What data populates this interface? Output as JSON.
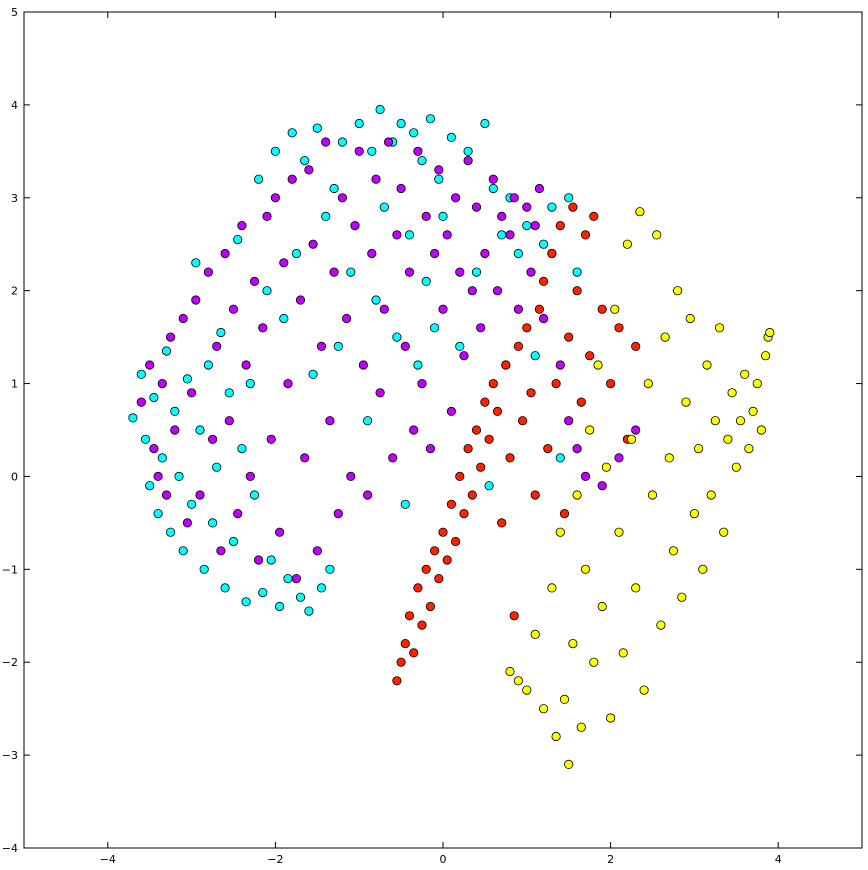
{
  "chart_data": {
    "type": "scatter",
    "title": "",
    "xlabel": "",
    "ylabel": "",
    "xlim": [
      -5,
      5
    ],
    "ylim": [
      -4,
      5
    ],
    "xticks": [
      -4,
      -2,
      0,
      2,
      4
    ],
    "yticks": [
      -4,
      -3,
      -2,
      -1,
      0,
      1,
      2,
      3,
      4,
      5
    ],
    "grid": false,
    "legend": "none",
    "series": [
      {
        "color": "#00ffff",
        "points": [
          [
            -3.7,
            0.63
          ],
          [
            -3.6,
            1.1
          ],
          [
            -3.55,
            0.4
          ],
          [
            -3.5,
            -0.1
          ],
          [
            -3.45,
            0.85
          ],
          [
            -3.4,
            -0.4
          ],
          [
            -3.35,
            0.2
          ],
          [
            -3.3,
            1.35
          ],
          [
            -3.25,
            -0.6
          ],
          [
            -3.2,
            0.7
          ],
          [
            -3.15,
            0.0
          ],
          [
            -3.1,
            -0.8
          ],
          [
            -3.05,
            1.05
          ],
          [
            -3.0,
            -0.3
          ],
          [
            -2.95,
            2.3
          ],
          [
            -2.9,
            0.5
          ],
          [
            -2.85,
            -1.0
          ],
          [
            -2.8,
            1.2
          ],
          [
            -2.75,
            -0.5
          ],
          [
            -2.7,
            0.1
          ],
          [
            -2.65,
            1.55
          ],
          [
            -2.6,
            -1.2
          ],
          [
            -2.55,
            0.9
          ],
          [
            -2.5,
            -0.7
          ],
          [
            -2.45,
            2.55
          ],
          [
            -2.4,
            0.3
          ],
          [
            -2.35,
            -1.35
          ],
          [
            -2.3,
            1.0
          ],
          [
            -2.25,
            -0.2
          ],
          [
            -2.2,
            3.2
          ],
          [
            -2.15,
            -1.25
          ],
          [
            -2.1,
            2.0
          ],
          [
            -2.05,
            -0.9
          ],
          [
            -2.0,
            3.5
          ],
          [
            -1.95,
            -1.4
          ],
          [
            -1.9,
            1.7
          ],
          [
            -1.85,
            -1.1
          ],
          [
            -1.8,
            3.7
          ],
          [
            -1.75,
            2.4
          ],
          [
            -1.7,
            -1.3
          ],
          [
            -1.65,
            3.4
          ],
          [
            -1.6,
            -1.45
          ],
          [
            -1.55,
            1.1
          ],
          [
            -1.5,
            3.75
          ],
          [
            -1.45,
            -1.2
          ],
          [
            -1.4,
            2.8
          ],
          [
            -1.35,
            -1.0
          ],
          [
            -1.3,
            3.1
          ],
          [
            -1.25,
            1.4
          ],
          [
            -1.2,
            3.6
          ],
          [
            -1.1,
            2.2
          ],
          [
            -1.0,
            3.8
          ],
          [
            -0.9,
            0.6
          ],
          [
            -0.85,
            3.5
          ],
          [
            -0.8,
            1.9
          ],
          [
            -0.75,
            3.95
          ],
          [
            -0.7,
            2.9
          ],
          [
            -0.6,
            3.6
          ],
          [
            -0.55,
            1.5
          ],
          [
            -0.5,
            3.8
          ],
          [
            -0.45,
            -0.3
          ],
          [
            -0.4,
            2.6
          ],
          [
            -0.35,
            3.7
          ],
          [
            -0.3,
            1.2
          ],
          [
            -0.25,
            3.4
          ],
          [
            -0.2,
            2.1
          ],
          [
            -0.15,
            3.85
          ],
          [
            -0.1,
            1.6
          ],
          [
            -0.05,
            3.2
          ],
          [
            0.0,
            2.8
          ],
          [
            0.1,
            3.65
          ],
          [
            0.2,
            1.4
          ],
          [
            0.3,
            3.5
          ],
          [
            0.4,
            2.2
          ],
          [
            0.5,
            3.8
          ],
          [
            0.55,
            -0.1
          ],
          [
            0.6,
            3.1
          ],
          [
            0.7,
            2.6
          ],
          [
            0.8,
            3.0
          ],
          [
            0.9,
            2.4
          ],
          [
            1.0,
            2.7
          ],
          [
            1.1,
            1.3
          ],
          [
            1.2,
            2.5
          ],
          [
            1.3,
            2.9
          ],
          [
            1.4,
            0.2
          ],
          [
            1.5,
            3.0
          ],
          [
            1.6,
            2.2
          ]
        ]
      },
      {
        "color": "#bf00ff",
        "points": [
          [
            -3.6,
            0.8
          ],
          [
            -3.5,
            1.2
          ],
          [
            -3.45,
            0.3
          ],
          [
            -3.4,
            0.0
          ],
          [
            -3.35,
            1.0
          ],
          [
            -3.3,
            -0.2
          ],
          [
            -3.25,
            1.5
          ],
          [
            -3.2,
            0.5
          ],
          [
            -3.1,
            1.7
          ],
          [
            -3.05,
            -0.5
          ],
          [
            -3.0,
            0.9
          ],
          [
            -2.95,
            1.9
          ],
          [
            -2.9,
            -0.2
          ],
          [
            -2.8,
            2.2
          ],
          [
            -2.75,
            0.4
          ],
          [
            -2.7,
            1.4
          ],
          [
            -2.65,
            -0.8
          ],
          [
            -2.6,
            2.4
          ],
          [
            -2.55,
            0.6
          ],
          [
            -2.5,
            1.8
          ],
          [
            -2.45,
            -0.4
          ],
          [
            -2.4,
            2.7
          ],
          [
            -2.35,
            1.2
          ],
          [
            -2.3,
            0.0
          ],
          [
            -2.25,
            2.1
          ],
          [
            -2.2,
            -0.9
          ],
          [
            -2.15,
            1.6
          ],
          [
            -2.1,
            2.8
          ],
          [
            -2.05,
            0.4
          ],
          [
            -2.0,
            3.0
          ],
          [
            -1.95,
            -0.6
          ],
          [
            -1.9,
            2.3
          ],
          [
            -1.85,
            1.0
          ],
          [
            -1.8,
            3.2
          ],
          [
            -1.75,
            -1.1
          ],
          [
            -1.7,
            1.9
          ],
          [
            -1.65,
            0.2
          ],
          [
            -1.6,
            3.3
          ],
          [
            -1.55,
            2.5
          ],
          [
            -1.5,
            -0.8
          ],
          [
            -1.45,
            1.4
          ],
          [
            -1.4,
            3.6
          ],
          [
            -1.35,
            0.6
          ],
          [
            -1.3,
            2.2
          ],
          [
            -1.25,
            -0.4
          ],
          [
            -1.2,
            3.0
          ],
          [
            -1.15,
            1.7
          ],
          [
            -1.1,
            0.0
          ],
          [
            -1.05,
            2.7
          ],
          [
            -1.0,
            3.5
          ],
          [
            -0.95,
            1.2
          ],
          [
            -0.9,
            -0.2
          ],
          [
            -0.85,
            2.4
          ],
          [
            -0.8,
            3.2
          ],
          [
            -0.75,
            0.9
          ],
          [
            -0.7,
            1.8
          ],
          [
            -0.65,
            3.6
          ],
          [
            -0.6,
            0.2
          ],
          [
            -0.55,
            2.6
          ],
          [
            -0.5,
            3.1
          ],
          [
            -0.45,
            1.4
          ],
          [
            -0.4,
            2.2
          ],
          [
            -0.35,
            0.5
          ],
          [
            -0.3,
            3.5
          ],
          [
            -0.25,
            1.0
          ],
          [
            -0.2,
            2.8
          ],
          [
            -0.15,
            0.3
          ],
          [
            -0.1,
            2.4
          ],
          [
            -0.05,
            3.3
          ],
          [
            0.0,
            1.8
          ],
          [
            0.05,
            2.6
          ],
          [
            0.1,
            0.7
          ],
          [
            0.15,
            3.0
          ],
          [
            0.2,
            2.2
          ],
          [
            0.25,
            1.3
          ],
          [
            0.3,
            3.4
          ],
          [
            0.35,
            2.0
          ],
          [
            0.4,
            2.9
          ],
          [
            0.45,
            1.6
          ],
          [
            0.5,
            2.4
          ],
          [
            0.6,
            3.2
          ],
          [
            0.65,
            2.0
          ],
          [
            0.7,
            2.8
          ],
          [
            0.75,
            1.2
          ],
          [
            0.8,
            2.6
          ],
          [
            0.85,
            3.0
          ],
          [
            0.9,
            1.8
          ],
          [
            1.0,
            2.9
          ],
          [
            1.05,
            2.2
          ],
          [
            1.1,
            2.7
          ],
          [
            1.15,
            3.1
          ],
          [
            1.2,
            1.7
          ],
          [
            1.3,
            2.4
          ],
          [
            1.4,
            1.2
          ],
          [
            1.5,
            0.6
          ],
          [
            1.6,
            0.3
          ],
          [
            1.7,
            0.0
          ],
          [
            1.9,
            -0.1
          ],
          [
            2.1,
            0.2
          ],
          [
            2.3,
            0.5
          ]
        ]
      },
      {
        "color": "#ff2200",
        "points": [
          [
            -0.55,
            -2.2
          ],
          [
            -0.5,
            -2.0
          ],
          [
            -0.45,
            -1.8
          ],
          [
            -0.4,
            -1.5
          ],
          [
            -0.35,
            -1.9
          ],
          [
            -0.3,
            -1.2
          ],
          [
            -0.25,
            -1.6
          ],
          [
            -0.2,
            -1.0
          ],
          [
            -0.15,
            -1.4
          ],
          [
            -0.1,
            -0.8
          ],
          [
            -0.05,
            -1.1
          ],
          [
            0.0,
            -0.6
          ],
          [
            0.05,
            -0.9
          ],
          [
            0.1,
            -0.3
          ],
          [
            0.15,
            -0.7
          ],
          [
            0.2,
            0.0
          ],
          [
            0.25,
            -0.4
          ],
          [
            0.3,
            0.3
          ],
          [
            0.35,
            -0.2
          ],
          [
            0.4,
            0.5
          ],
          [
            0.45,
            0.1
          ],
          [
            0.5,
            0.8
          ],
          [
            0.55,
            0.4
          ],
          [
            0.6,
            1.0
          ],
          [
            0.65,
            0.7
          ],
          [
            0.7,
            -0.5
          ],
          [
            0.75,
            1.2
          ],
          [
            0.8,
            0.2
          ],
          [
            0.85,
            -1.5
          ],
          [
            0.9,
            1.4
          ],
          [
            0.95,
            0.6
          ],
          [
            1.0,
            1.6
          ],
          [
            1.05,
            0.9
          ],
          [
            1.1,
            -0.2
          ],
          [
            1.15,
            1.8
          ],
          [
            1.2,
            2.1
          ],
          [
            1.25,
            0.3
          ],
          [
            1.3,
            2.4
          ],
          [
            1.35,
            1.0
          ],
          [
            1.4,
            2.7
          ],
          [
            1.45,
            -0.4
          ],
          [
            1.5,
            1.5
          ],
          [
            1.55,
            2.9
          ],
          [
            1.6,
            2.0
          ],
          [
            1.65,
            0.8
          ],
          [
            1.7,
            2.6
          ],
          [
            1.75,
            1.3
          ],
          [
            1.8,
            2.8
          ],
          [
            1.9,
            1.8
          ],
          [
            2.0,
            1.0
          ],
          [
            2.1,
            1.6
          ],
          [
            2.2,
            0.4
          ],
          [
            2.3,
            1.4
          ]
        ]
      },
      {
        "color": "#ffff00",
        "points": [
          [
            0.8,
            -2.1
          ],
          [
            0.9,
            -2.2
          ],
          [
            1.0,
            -2.3
          ],
          [
            1.1,
            -1.7
          ],
          [
            1.2,
            -2.5
          ],
          [
            1.3,
            -1.2
          ],
          [
            1.35,
            -2.8
          ],
          [
            1.4,
            -0.6
          ],
          [
            1.45,
            -2.4
          ],
          [
            1.5,
            -3.1
          ],
          [
            1.55,
            -1.8
          ],
          [
            1.6,
            -0.2
          ],
          [
            1.65,
            -2.7
          ],
          [
            1.7,
            -1.0
          ],
          [
            1.75,
            0.5
          ],
          [
            1.8,
            -2.0
          ],
          [
            1.85,
            1.2
          ],
          [
            1.9,
            -1.4
          ],
          [
            1.95,
            0.1
          ],
          [
            2.0,
            -2.6
          ],
          [
            2.05,
            1.8
          ],
          [
            2.1,
            -0.6
          ],
          [
            2.15,
            -1.9
          ],
          [
            2.2,
            2.5
          ],
          [
            2.25,
            0.4
          ],
          [
            2.3,
            -1.2
          ],
          [
            2.35,
            2.85
          ],
          [
            2.4,
            -2.3
          ],
          [
            2.45,
            1.0
          ],
          [
            2.5,
            -0.2
          ],
          [
            2.55,
            2.6
          ],
          [
            2.6,
            -1.6
          ],
          [
            2.65,
            1.5
          ],
          [
            2.7,
            0.2
          ],
          [
            2.75,
            -0.8
          ],
          [
            2.8,
            2.0
          ],
          [
            2.85,
            -1.3
          ],
          [
            2.9,
            0.8
          ],
          [
            2.95,
            1.7
          ],
          [
            3.0,
            -0.4
          ],
          [
            3.05,
            0.3
          ],
          [
            3.1,
            -1.0
          ],
          [
            3.15,
            1.2
          ],
          [
            3.2,
            -0.2
          ],
          [
            3.25,
            0.6
          ],
          [
            3.3,
            1.6
          ],
          [
            3.35,
            -0.6
          ],
          [
            3.4,
            0.4
          ],
          [
            3.45,
            0.9
          ],
          [
            3.5,
            0.1
          ],
          [
            3.55,
            0.6
          ],
          [
            3.6,
            1.1
          ],
          [
            3.65,
            0.3
          ],
          [
            3.7,
            0.7
          ],
          [
            3.75,
            1.0
          ],
          [
            3.8,
            0.5
          ],
          [
            3.85,
            1.3
          ],
          [
            3.88,
            1.5
          ],
          [
            3.9,
            1.55
          ]
        ]
      }
    ]
  }
}
